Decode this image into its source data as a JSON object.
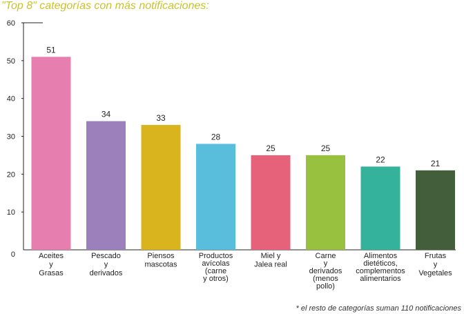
{
  "title": "\"Top 8\" categorías con más notificaciones:",
  "footnote": "* el resto de categorías suman 110 notificaciones",
  "chart_data": {
    "type": "bar",
    "title": "\"Top 8\" categorías con más notificaciones:",
    "ylim": [
      0,
      60
    ],
    "yticks": [
      0,
      10,
      20,
      30,
      40,
      50,
      60
    ],
    "grid": false,
    "categories": [
      "Aceites y Grasas",
      "Pescado y derivados",
      "Piensos mascotas",
      "Productos avícolas (carne y otros)",
      "Miel y Jalea real",
      "Carne y derivados (menos pollo)",
      "Alimentos dietéticos, complementos alimentarios",
      "Frutas y Vegetales"
    ],
    "category_lines": [
      [
        "Aceites",
        "y",
        "Grasas"
      ],
      [
        "Pescado",
        "y",
        "derivados"
      ],
      [
        "Piensos",
        "mascotas"
      ],
      [
        "Productos",
        "avícolas",
        "(carne",
        "y   otros)"
      ],
      [
        "Miel y",
        "Jalea real"
      ],
      [
        "Carne",
        "y",
        "derivados",
        "(menos",
        "pollo)"
      ],
      [
        "Alimentos",
        "dietéticos,",
        "complementos",
        "alimentarios"
      ],
      [
        "Frutas",
        "y",
        "Vegetales"
      ]
    ],
    "values": [
      51,
      34,
      33,
      28,
      25,
      25,
      22,
      21
    ],
    "colors": [
      "#e67fb0",
      "#9c80bb",
      "#d9b41e",
      "#58bedb",
      "#e6627a",
      "#97c13f",
      "#34b29b",
      "#435e3b"
    ]
  }
}
